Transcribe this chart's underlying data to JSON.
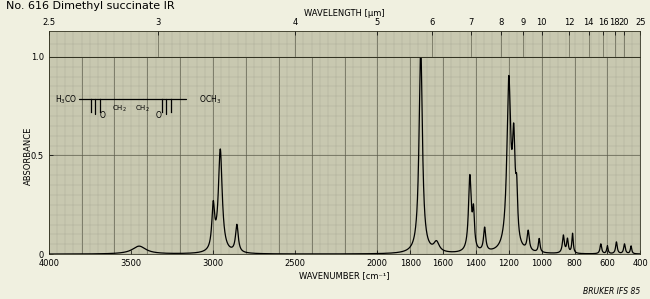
{
  "title": "No. 616 Dimethyl succinate IR",
  "xlabel": "WAVENUMBER [cm⁻¹]",
  "ylabel": "ABSORBANCE",
  "wavelength_label": "WAVELENGTH [μm]",
  "bruker_label": "BRUKER IFS 85",
  "xmin": 4000,
  "xmax": 400,
  "ymin": 0,
  "ymax": 1.0,
  "bg_color": "#c8c8b0",
  "grid_minor_color": "#aaaaaa",
  "grid_major_color": "#666666",
  "line_color": "#000000",
  "wavelength_ticks_um": [
    2.5,
    3,
    4,
    5,
    6,
    7,
    8,
    9,
    10,
    12,
    14,
    16,
    18,
    20,
    25
  ],
  "wavenumber_ticks": [
    4000,
    3500,
    3000,
    2500,
    2000,
    1800,
    1600,
    1400,
    1200,
    1000,
    800,
    600,
    400
  ],
  "title_fontsize": 8,
  "axis_fontsize": 6,
  "tick_fontsize": 6
}
